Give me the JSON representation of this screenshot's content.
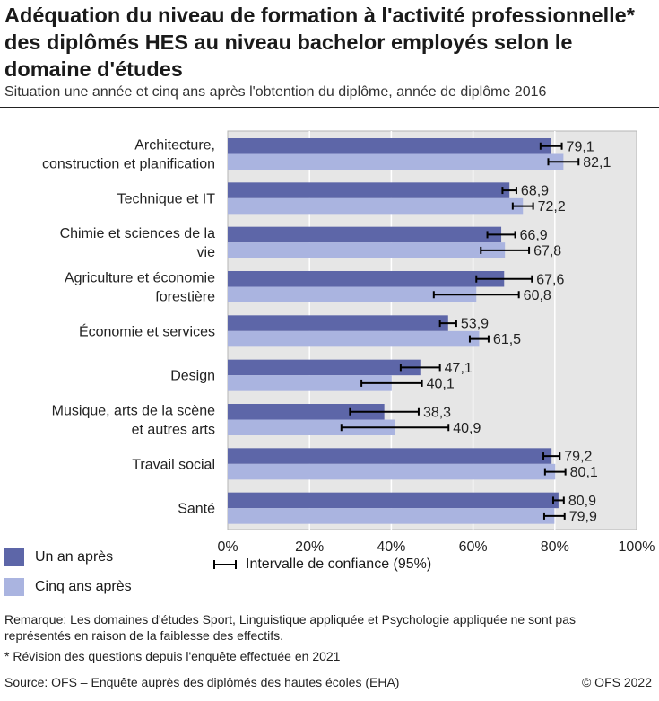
{
  "title": "Adéquation du niveau de formation à l'activité professionnelle* des diplômés HES au niveau bachelor employés selon le domaine d'études",
  "subtitle": "Situation une année et cinq ans après l'obtention du diplôme, année de diplôme 2016",
  "legend": {
    "series1": "Un an après",
    "series2": "Cinq ans après",
    "ci": "Intervalle de confiance (95%)"
  },
  "notes": {
    "remark": "Remarque: Les domaines d'études Sport, Linguistique appliquée et Psychologie appliquée ne sont pas représentés en raison de la faiblesse des effectifs.",
    "revision": "* Révision des questions depuis l'enquête effectuée en 2021"
  },
  "source": "Source: OFS – Enquête auprès des diplômés des hautes écoles (EHA)",
  "copyright": "© OFS 2022",
  "colors": {
    "series1": "#5d66a8",
    "series2": "#aab4e0",
    "plot_bg": "#e6e6e6",
    "grid": "#ffffff"
  },
  "chart_data": {
    "type": "bar",
    "orientation": "horizontal",
    "categories": [
      [
        "Architecture,",
        "construction et planification"
      ],
      [
        "Technique et IT"
      ],
      [
        "Chimie et sciences de la",
        "vie"
      ],
      [
        "Agriculture et économie",
        "forestière"
      ],
      [
        "Économie et services"
      ],
      [
        "Design"
      ],
      [
        "Musique, arts de la scène",
        "et autres arts"
      ],
      [
        "Travail social"
      ],
      [
        "Santé"
      ]
    ],
    "series": [
      {
        "name": "Un an après",
        "values": [
          79.1,
          68.9,
          66.9,
          67.6,
          53.9,
          47.1,
          38.3,
          79.2,
          80.9
        ],
        "labels": [
          "79,1",
          "68,9",
          "66,9",
          "67,6",
          "53,9",
          "47,1",
          "38,3",
          "79,2",
          "80,9"
        ],
        "ci": [
          [
            76.5,
            81.7
          ],
          [
            67.2,
            70.6
          ],
          [
            63.5,
            70.3
          ],
          [
            60.8,
            74.4
          ],
          [
            51.9,
            55.9
          ],
          [
            42.3,
            51.9
          ],
          [
            29.9,
            46.7
          ],
          [
            77.2,
            81.2
          ],
          [
            79.6,
            82.2
          ]
        ]
      },
      {
        "name": "Cinq ans après",
        "values": [
          82.1,
          72.2,
          67.8,
          60.8,
          61.5,
          40.1,
          40.9,
          80.1,
          79.9
        ],
        "labels": [
          "82,1",
          "72,2",
          "67,8",
          "60,8",
          "61,5",
          "40,1",
          "40,9",
          "80,1",
          "79,9"
        ],
        "ci": [
          [
            78.4,
            85.8
          ],
          [
            69.7,
            74.7
          ],
          [
            61.9,
            73.7
          ],
          [
            50.4,
            71.2
          ],
          [
            59.2,
            63.8
          ],
          [
            32.7,
            47.5
          ],
          [
            27.8,
            54.0
          ],
          [
            77.6,
            82.6
          ],
          [
            77.4,
            82.4
          ]
        ]
      }
    ],
    "xlim": [
      0,
      100
    ],
    "xticks": [
      0,
      20,
      40,
      60,
      80,
      100
    ],
    "xtick_labels": [
      "0%",
      "20%",
      "40%",
      "60%",
      "80%",
      "100%"
    ],
    "grid": true,
    "legend_position": "bottom-left"
  }
}
